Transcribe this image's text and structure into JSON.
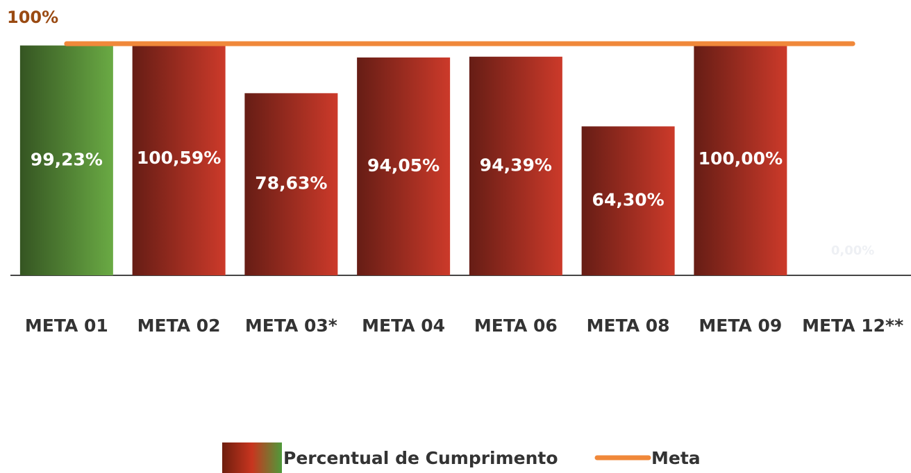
{
  "chart_data": {
    "type": "bar",
    "annotation": "100%",
    "categories": [
      "META 01",
      "META 02",
      "META 03*",
      "META 04",
      "META 06",
      "META 08",
      "META 09",
      "META 12**"
    ],
    "series": [
      {
        "name": "Percentual de Cumprimento",
        "type": "bar",
        "colors": [
          "#6aaa44",
          "#cc3a2a",
          "#cc3a2a",
          "#cc3a2a",
          "#cc3a2a",
          "#cc3a2a",
          "#cc3a2a",
          "#cc3a2a"
        ],
        "values": [
          99.23,
          100.59,
          78.63,
          94.05,
          94.39,
          64.3,
          100.0,
          0
        ],
        "value_labels": [
          "99,23%",
          "100,59%",
          "78,63%",
          "94,05%",
          "94,39%",
          "64,30%",
          "100,00%",
          "0,00%"
        ]
      },
      {
        "name": "Meta",
        "type": "line",
        "color": "#f0883a",
        "values": [
          100,
          100,
          100,
          100,
          100,
          100,
          100,
          100
        ]
      }
    ],
    "ylim": [
      0,
      100
    ]
  }
}
